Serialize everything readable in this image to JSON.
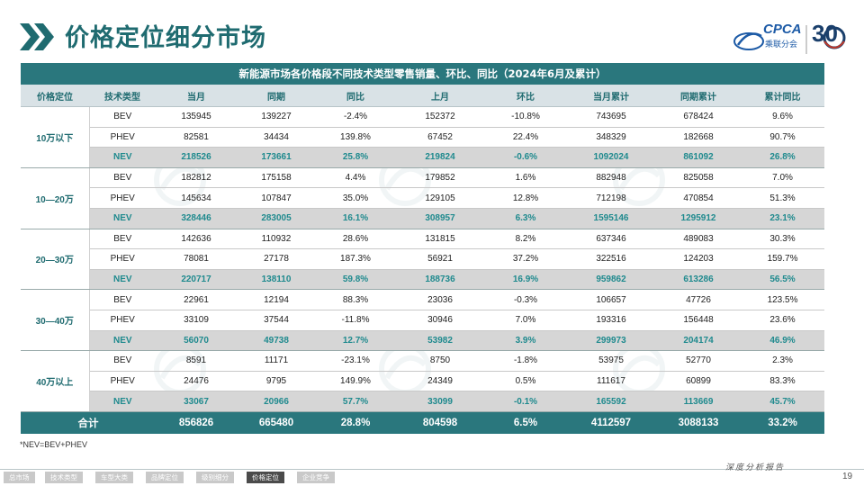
{
  "page_title": "价格定位细分市场",
  "logo": {
    "cpca_text": "CPCA",
    "cpca_sub": "乘联分会",
    "anniversary": "30"
  },
  "table": {
    "title": "新能源市场各价格段不同技术类型零售销量、环比、同比（2024年6月及累计）",
    "headers": [
      "价格定位",
      "技术类型",
      "当月",
      "同期",
      "同比",
      "上月",
      "环比",
      "当月累计",
      "同期累计",
      "累计同比"
    ],
    "groups": [
      {
        "label": "10万以下",
        "rows": [
          [
            "BEV",
            "135945",
            "139227",
            "-2.4%",
            "152372",
            "-10.8%",
            "743695",
            "678424",
            "9.6%"
          ],
          [
            "PHEV",
            "82581",
            "34434",
            "139.8%",
            "67452",
            "22.4%",
            "348329",
            "182668",
            "90.7%"
          ],
          [
            "NEV",
            "218526",
            "173661",
            "25.8%",
            "219824",
            "-0.6%",
            "1092024",
            "861092",
            "26.8%"
          ]
        ]
      },
      {
        "label": "10—20万",
        "rows": [
          [
            "BEV",
            "182812",
            "175158",
            "4.4%",
            "179852",
            "1.6%",
            "882948",
            "825058",
            "7.0%"
          ],
          [
            "PHEV",
            "145634",
            "107847",
            "35.0%",
            "129105",
            "12.8%",
            "712198",
            "470854",
            "51.3%"
          ],
          [
            "NEV",
            "328446",
            "283005",
            "16.1%",
            "308957",
            "6.3%",
            "1595146",
            "1295912",
            "23.1%"
          ]
        ]
      },
      {
        "label": "20—30万",
        "rows": [
          [
            "BEV",
            "142636",
            "110932",
            "28.6%",
            "131815",
            "8.2%",
            "637346",
            "489083",
            "30.3%"
          ],
          [
            "PHEV",
            "78081",
            "27178",
            "187.3%",
            "56921",
            "37.2%",
            "322516",
            "124203",
            "159.7%"
          ],
          [
            "NEV",
            "220717",
            "138110",
            "59.8%",
            "188736",
            "16.9%",
            "959862",
            "613286",
            "56.5%"
          ]
        ]
      },
      {
        "label": "30—40万",
        "rows": [
          [
            "BEV",
            "22961",
            "12194",
            "88.3%",
            "23036",
            "-0.3%",
            "106657",
            "47726",
            "123.5%"
          ],
          [
            "PHEV",
            "33109",
            "37544",
            "-11.8%",
            "30946",
            "7.0%",
            "193316",
            "156448",
            "23.6%"
          ],
          [
            "NEV",
            "56070",
            "49738",
            "12.7%",
            "53982",
            "3.9%",
            "299973",
            "204174",
            "46.9%"
          ]
        ]
      },
      {
        "label": "40万以上",
        "rows": [
          [
            "BEV",
            "8591",
            "11171",
            "-23.1%",
            "8750",
            "-1.8%",
            "53975",
            "52770",
            "2.3%"
          ],
          [
            "PHEV",
            "24476",
            "9795",
            "149.9%",
            "24349",
            "0.5%",
            "111617",
            "60899",
            "83.3%"
          ],
          [
            "NEV",
            "33067",
            "20966",
            "57.7%",
            "33099",
            "-0.1%",
            "165592",
            "113669",
            "45.7%"
          ]
        ]
      }
    ],
    "total": [
      "合计",
      "856826",
      "665480",
      "28.8%",
      "804598",
      "6.5%",
      "4112597",
      "3088133",
      "33.2%"
    ]
  },
  "footnote": "*NEV=BEV+PHEV",
  "bottom_nav": [
    {
      "label": "总市场",
      "active": false
    },
    {
      "label": "技术类型",
      "active": false
    },
    {
      "label": "车型大类",
      "active": false
    },
    {
      "label": "品牌定位",
      "active": false
    },
    {
      "label": "级别细分",
      "active": false
    },
    {
      "label": "价格定位",
      "active": true
    },
    {
      "label": "企业竞争",
      "active": false
    }
  ],
  "report_label": "深度分析报告",
  "page_number": "19",
  "colors": {
    "teal": "#2a777d",
    "nev_text": "#1f8a8e",
    "header_bg": "#d9e2e6",
    "nev_row_bg": "#d6d6d6"
  }
}
